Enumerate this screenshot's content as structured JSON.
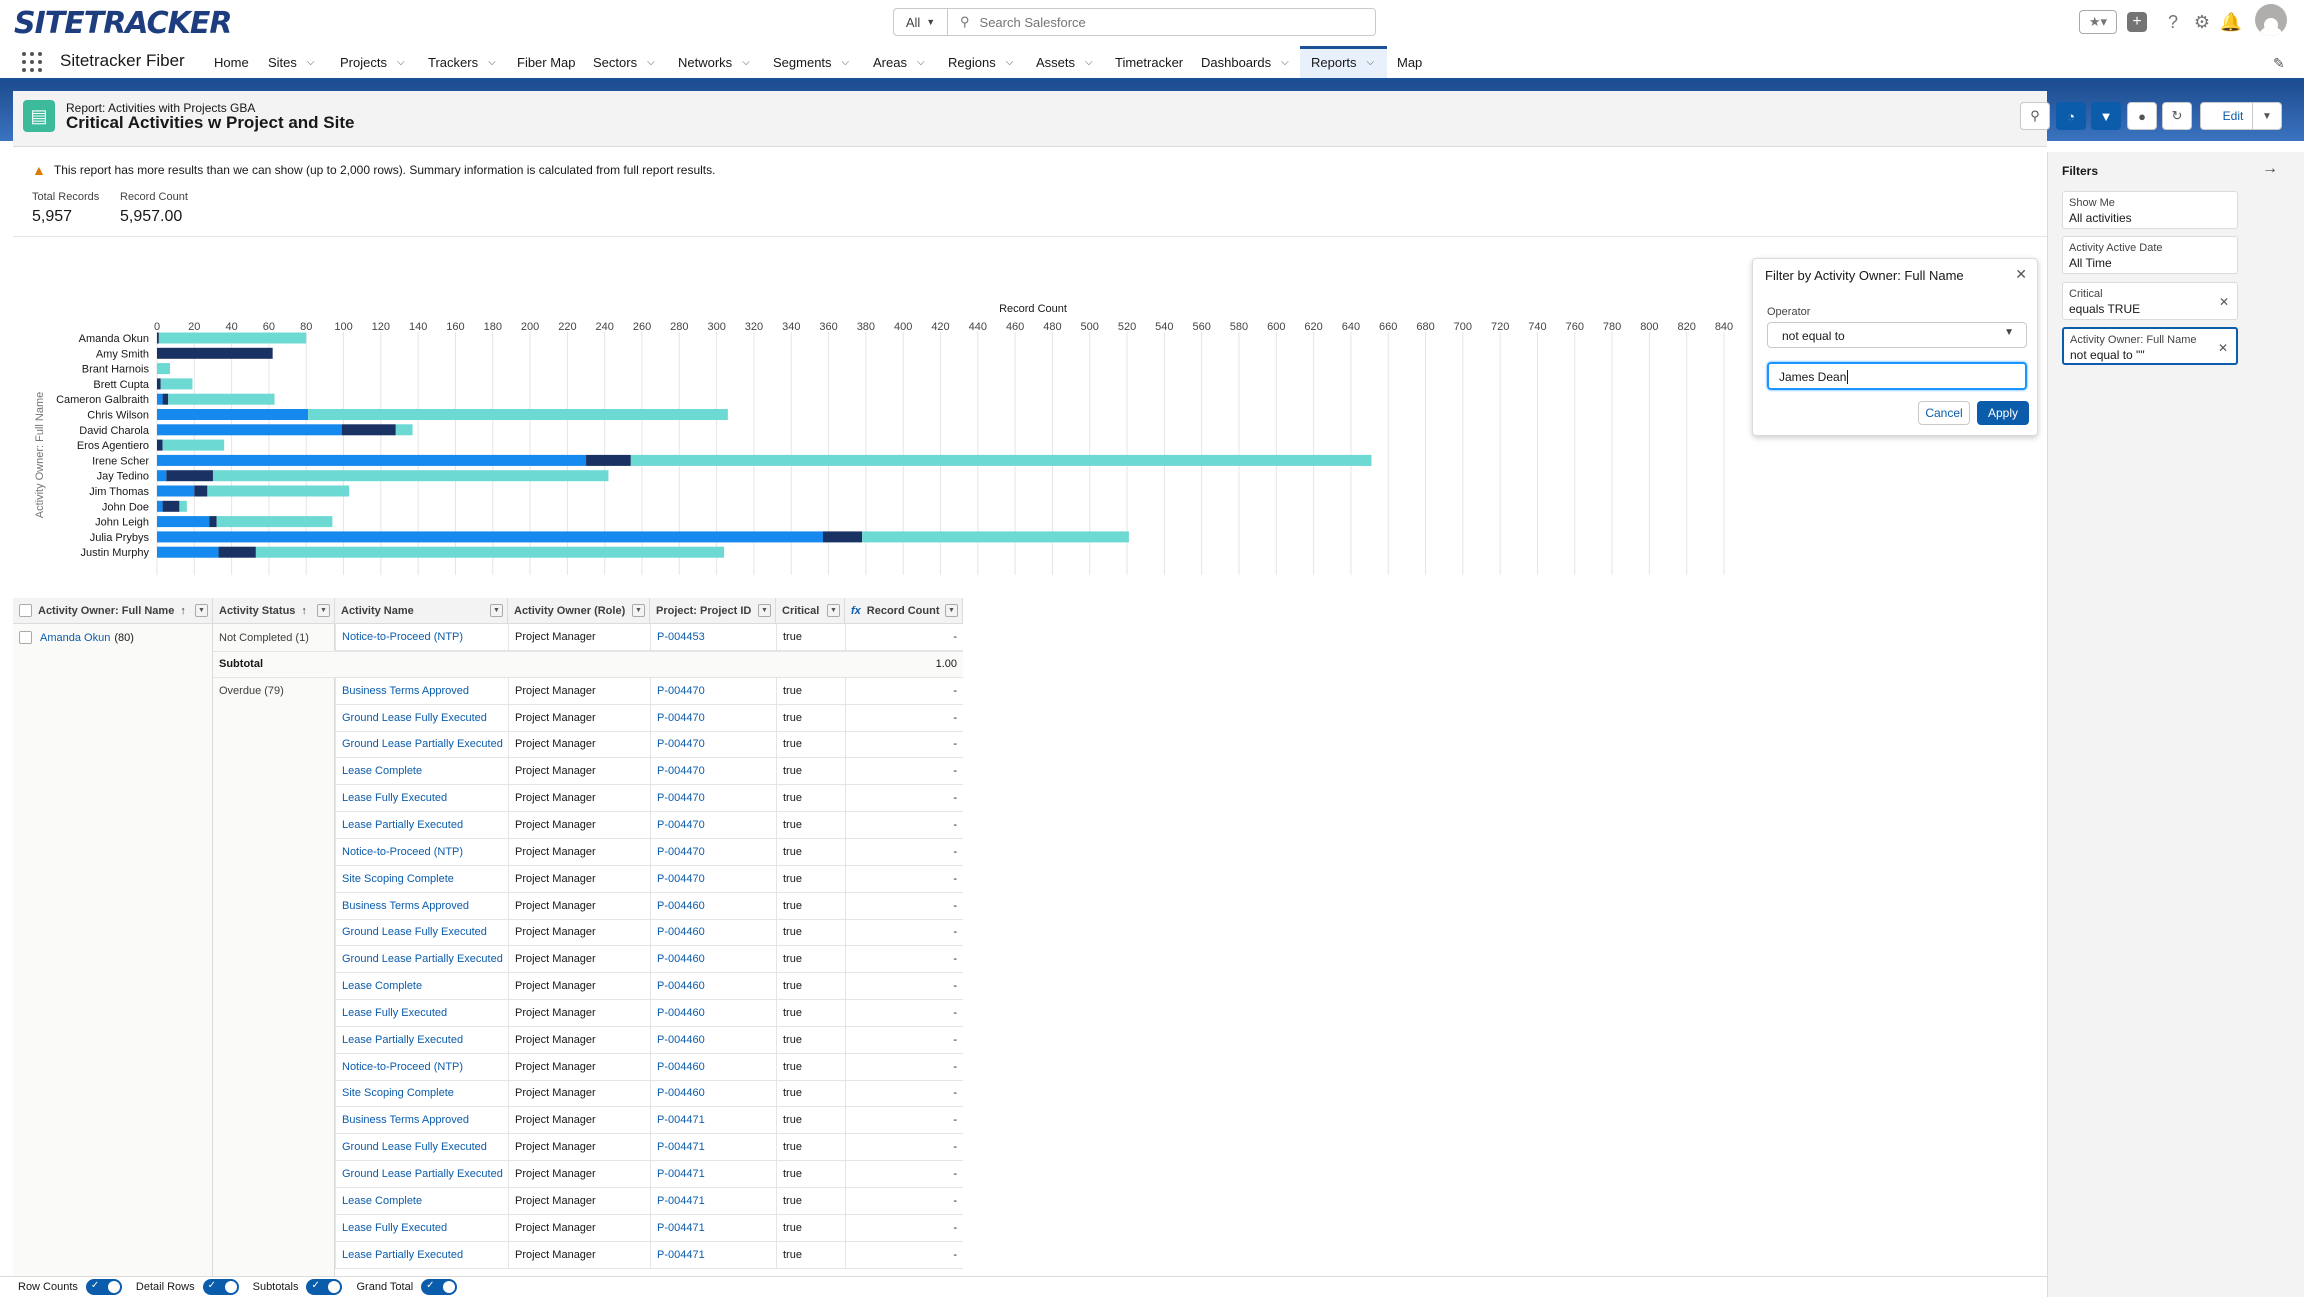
{
  "header": {
    "logo": "SITETRACKER",
    "search_scope": "All",
    "search_placeholder": "Search Salesforce"
  },
  "nav": {
    "app_name": "Sitetracker Fiber",
    "items": [
      {
        "label": "Home",
        "dropdown": false
      },
      {
        "label": "Sites",
        "dropdown": true
      },
      {
        "label": "Projects",
        "dropdown": true
      },
      {
        "label": "Trackers",
        "dropdown": true
      },
      {
        "label": "Fiber Map",
        "dropdown": false
      },
      {
        "label": "Sectors",
        "dropdown": true
      },
      {
        "label": "Networks",
        "dropdown": true
      },
      {
        "label": "Segments",
        "dropdown": true
      },
      {
        "label": "Areas",
        "dropdown": true
      },
      {
        "label": "Regions",
        "dropdown": true
      },
      {
        "label": "Assets",
        "dropdown": true
      },
      {
        "label": "Timetracker",
        "dropdown": false
      },
      {
        "label": "Dashboards",
        "dropdown": true
      },
      {
        "label": "Reports",
        "dropdown": true,
        "active": true
      },
      {
        "label": "Map",
        "dropdown": false
      }
    ]
  },
  "report": {
    "subtitle": "Report: Activities with Projects GBA",
    "title": "Critical Activities w Project and Site",
    "edit_label": "Edit",
    "warning": "This report has more results than we can show (up to 2,000 rows). Summary information is calculated from full report results.",
    "total_records_label": "Total Records",
    "total_records_value": "5,957",
    "record_count_label": "Record Count",
    "record_count_value": "5,957.00"
  },
  "popover": {
    "title": "Filter by Activity Owner: Full Name",
    "operator_label": "Operator",
    "operator_value": "not equal to",
    "input_value": "James Dean",
    "cancel_label": "Cancel",
    "apply_label": "Apply"
  },
  "filters": {
    "title": "Filters",
    "items": [
      {
        "label": "Show Me",
        "value": "All activities",
        "removable": false
      },
      {
        "label": "Activity Active Date",
        "value": "All Time",
        "removable": false
      },
      {
        "label": "Critical",
        "value": "equals TRUE",
        "removable": true
      },
      {
        "label": "Activity Owner: Full Name",
        "value": "not equal to \"\"",
        "removable": true
      }
    ]
  },
  "chart_data": {
    "type": "bar",
    "orientation": "horizontal",
    "stacked": true,
    "title": "Record Count",
    "xlabel": "Record Count",
    "ylabel": "Activity Owner: Full Name",
    "xlim": [
      0,
      840
    ],
    "xticks": [
      0,
      20,
      40,
      60,
      80,
      100,
      120,
      140,
      160,
      180,
      200,
      220,
      240,
      260,
      280,
      300,
      320,
      340,
      360,
      380,
      400,
      420,
      440,
      460,
      480,
      500,
      520,
      540,
      560,
      580,
      600,
      620,
      640,
      660,
      680,
      700,
      720,
      740,
      760,
      780,
      800,
      820,
      840
    ],
    "categories": [
      "Amanda Okun",
      "Amy Smith",
      "Brant Harnois",
      "Brett Cupta",
      "Cameron Galbraith",
      "Chris Wilson",
      "David Charola",
      "Eros Agentiero",
      "Irene Scher",
      "Jay Tedino",
      "Jim Thomas",
      "John Doe",
      "John Leigh",
      "Julia Prybys",
      "Justin Murphy"
    ],
    "colors": [
      "#1589ee",
      "#1a3263",
      "#6cd9d3"
    ],
    "series": [
      {
        "values": [
          0,
          0,
          0,
          0,
          3,
          81,
          99,
          0,
          230,
          5,
          20,
          3,
          28,
          357,
          33
        ]
      },
      {
        "values": [
          1,
          62,
          0,
          2,
          3,
          0,
          29,
          3,
          24,
          25,
          7,
          9,
          4,
          21,
          20
        ]
      },
      {
        "values": [
          79,
          0,
          7,
          17,
          57,
          225,
          9,
          33,
          397,
          212,
          76,
          4,
          62,
          143,
          251
        ]
      }
    ]
  },
  "table": {
    "columns": [
      {
        "label": "Activity Owner: Full Name",
        "sorted": true
      },
      {
        "label": "Activity Status",
        "sorted": true
      },
      {
        "label": "Activity Name",
        "sorted": false
      },
      {
        "label": "Activity Owner (Role)",
        "sorted": false
      },
      {
        "label": "Project: Project ID",
        "sorted": false
      },
      {
        "label": "Critical",
        "sorted": false
      },
      {
        "label": "Record Count",
        "sorted": false,
        "formula": true
      }
    ],
    "group_owner": "Amanda Okun",
    "group_owner_count": "(80)",
    "status_groups": [
      {
        "label": "Not Completed (1)"
      },
      {
        "label": "Overdue (79)"
      }
    ],
    "subtotal_label": "Subtotal",
    "subtotal_value": "1.00",
    "rows": [
      {
        "name": "Notice-to-Proceed (NTP)",
        "role": "Project Manager",
        "project": "P-004453",
        "critical": "true",
        "count": "-"
      },
      {
        "name": "Business Terms Approved",
        "role": "Project Manager",
        "project": "P-004470",
        "critical": "true",
        "count": "-"
      },
      {
        "name": "Ground Lease Fully Executed",
        "role": "Project Manager",
        "project": "P-004470",
        "critical": "true",
        "count": "-"
      },
      {
        "name": "Ground Lease Partially Executed",
        "role": "Project Manager",
        "project": "P-004470",
        "critical": "true",
        "count": "-"
      },
      {
        "name": "Lease Complete",
        "role": "Project Manager",
        "project": "P-004470",
        "critical": "true",
        "count": "-"
      },
      {
        "name": "Lease Fully Executed",
        "role": "Project Manager",
        "project": "P-004470",
        "critical": "true",
        "count": "-"
      },
      {
        "name": "Lease Partially Executed",
        "role": "Project Manager",
        "project": "P-004470",
        "critical": "true",
        "count": "-"
      },
      {
        "name": "Notice-to-Proceed (NTP)",
        "role": "Project Manager",
        "project": "P-004470",
        "critical": "true",
        "count": "-"
      },
      {
        "name": "Site Scoping Complete",
        "role": "Project Manager",
        "project": "P-004470",
        "critical": "true",
        "count": "-"
      },
      {
        "name": "Business Terms Approved",
        "role": "Project Manager",
        "project": "P-004460",
        "critical": "true",
        "count": "-"
      },
      {
        "name": "Ground Lease Fully Executed",
        "role": "Project Manager",
        "project": "P-004460",
        "critical": "true",
        "count": "-"
      },
      {
        "name": "Ground Lease Partially Executed",
        "role": "Project Manager",
        "project": "P-004460",
        "critical": "true",
        "count": "-"
      },
      {
        "name": "Lease Complete",
        "role": "Project Manager",
        "project": "P-004460",
        "critical": "true",
        "count": "-"
      },
      {
        "name": "Lease Fully Executed",
        "role": "Project Manager",
        "project": "P-004460",
        "critical": "true",
        "count": "-"
      },
      {
        "name": "Lease Partially Executed",
        "role": "Project Manager",
        "project": "P-004460",
        "critical": "true",
        "count": "-"
      },
      {
        "name": "Notice-to-Proceed (NTP)",
        "role": "Project Manager",
        "project": "P-004460",
        "critical": "true",
        "count": "-"
      },
      {
        "name": "Site Scoping Complete",
        "role": "Project Manager",
        "project": "P-004460",
        "critical": "true",
        "count": "-"
      },
      {
        "name": "Business Terms Approved",
        "role": "Project Manager",
        "project": "P-004471",
        "critical": "true",
        "count": "-"
      },
      {
        "name": "Ground Lease Fully Executed",
        "role": "Project Manager",
        "project": "P-004471",
        "critical": "true",
        "count": "-"
      },
      {
        "name": "Ground Lease Partially Executed",
        "role": "Project Manager",
        "project": "P-004471",
        "critical": "true",
        "count": "-"
      },
      {
        "name": "Lease Complete",
        "role": "Project Manager",
        "project": "P-004471",
        "critical": "true",
        "count": "-"
      },
      {
        "name": "Lease Fully Executed",
        "role": "Project Manager",
        "project": "P-004471",
        "critical": "true",
        "count": "-"
      },
      {
        "name": "Lease Partially Executed",
        "role": "Project Manager",
        "project": "P-004471",
        "critical": "true",
        "count": "-"
      }
    ]
  },
  "footer": {
    "toggles": [
      {
        "label": "Row Counts",
        "on": true
      },
      {
        "label": "Detail Rows",
        "on": true
      },
      {
        "label": "Subtotals",
        "on": true
      },
      {
        "label": "Grand Total",
        "on": true
      }
    ]
  }
}
